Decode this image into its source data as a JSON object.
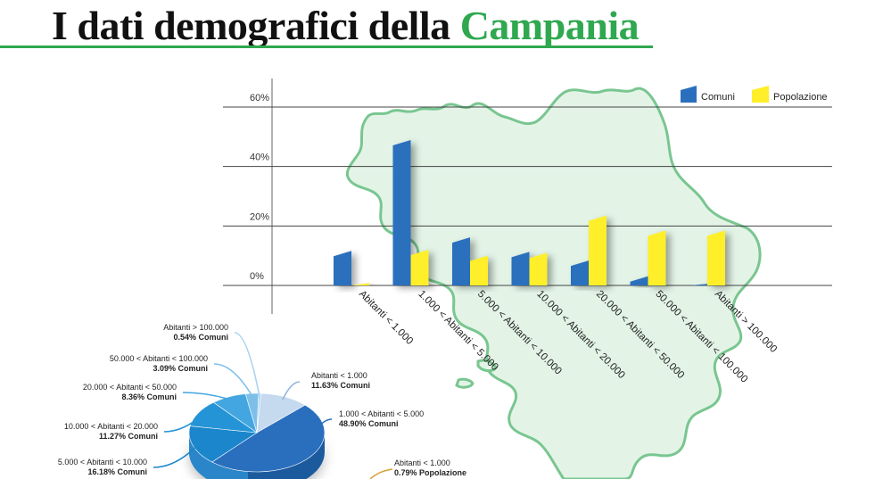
{
  "header": {
    "title_main": "I dati demografici della",
    "title_accent": "Campania"
  },
  "colors": {
    "accent": "#2fa84f",
    "comuni": "#2a6fbd",
    "popolazione": "#ffef2a",
    "map_fill": "#e3f4e7",
    "map_stroke": "#79c690"
  },
  "chart_data": [
    {
      "type": "bar",
      "legend_position": "top-right",
      "grid": true,
      "ylim": [
        0,
        60
      ],
      "yticks": [
        "60%",
        "40%",
        "20%",
        "0%"
      ],
      "categories": [
        "Abitanti < 1.000",
        "1.000 < Abitanti < 5.000",
        "5.000 < Abitanti < 10.000",
        "10.000 < Abitanti < 20.000",
        "20.000 < Abitanti < 50.000",
        "50.000 < Abitanti < 100.000",
        "Abitanti > 100.000"
      ],
      "series": [
        {
          "name": "Comuni",
          "values": [
            11.63,
            48.9,
            16.18,
            11.27,
            8.36,
            3.09,
            0.54
          ]
        },
        {
          "name": "Popolazione",
          "values": [
            0.79,
            12.0,
            10.0,
            11.0,
            23.5,
            18.5,
            18.5
          ]
        }
      ]
    },
    {
      "type": "pie",
      "slices": [
        {
          "label": "Abitanti < 1.000",
          "value_label": "11.63% Comuni",
          "value": 11.63,
          "color": "#c5d9ef"
        },
        {
          "label": "1.000 < Abitanti < 5.000",
          "value_label": "48.90% Comuni",
          "value": 48.9,
          "color": "#2a6fbd"
        },
        {
          "label": "5.000 < Abitanti < 10.000",
          "value_label": "16.18% Comuni",
          "value": 16.18,
          "color": "#1b86cc"
        },
        {
          "label": "10.000 < Abitanti < 20.000",
          "value_label": "11.27% Comuni",
          "value": 11.27,
          "color": "#2594d6"
        },
        {
          "label": "20.000 < Abitanti < 50.000",
          "value_label": "8.36% Comuni",
          "value": 8.36,
          "color": "#44a6e0"
        },
        {
          "label": "50.000 < Abitanti < 100.000",
          "value_label": "3.09% Comuni",
          "value": 3.09,
          "color": "#7cc0ea"
        },
        {
          "label": "Abitanti > 100.000",
          "value_label": "0.54% Comuni",
          "value": 0.54,
          "color": "#a9d3f0"
        }
      ],
      "extra_label": {
        "label": "Abitanti < 1.000",
        "value_label": "0.79% Popolazione"
      }
    }
  ]
}
